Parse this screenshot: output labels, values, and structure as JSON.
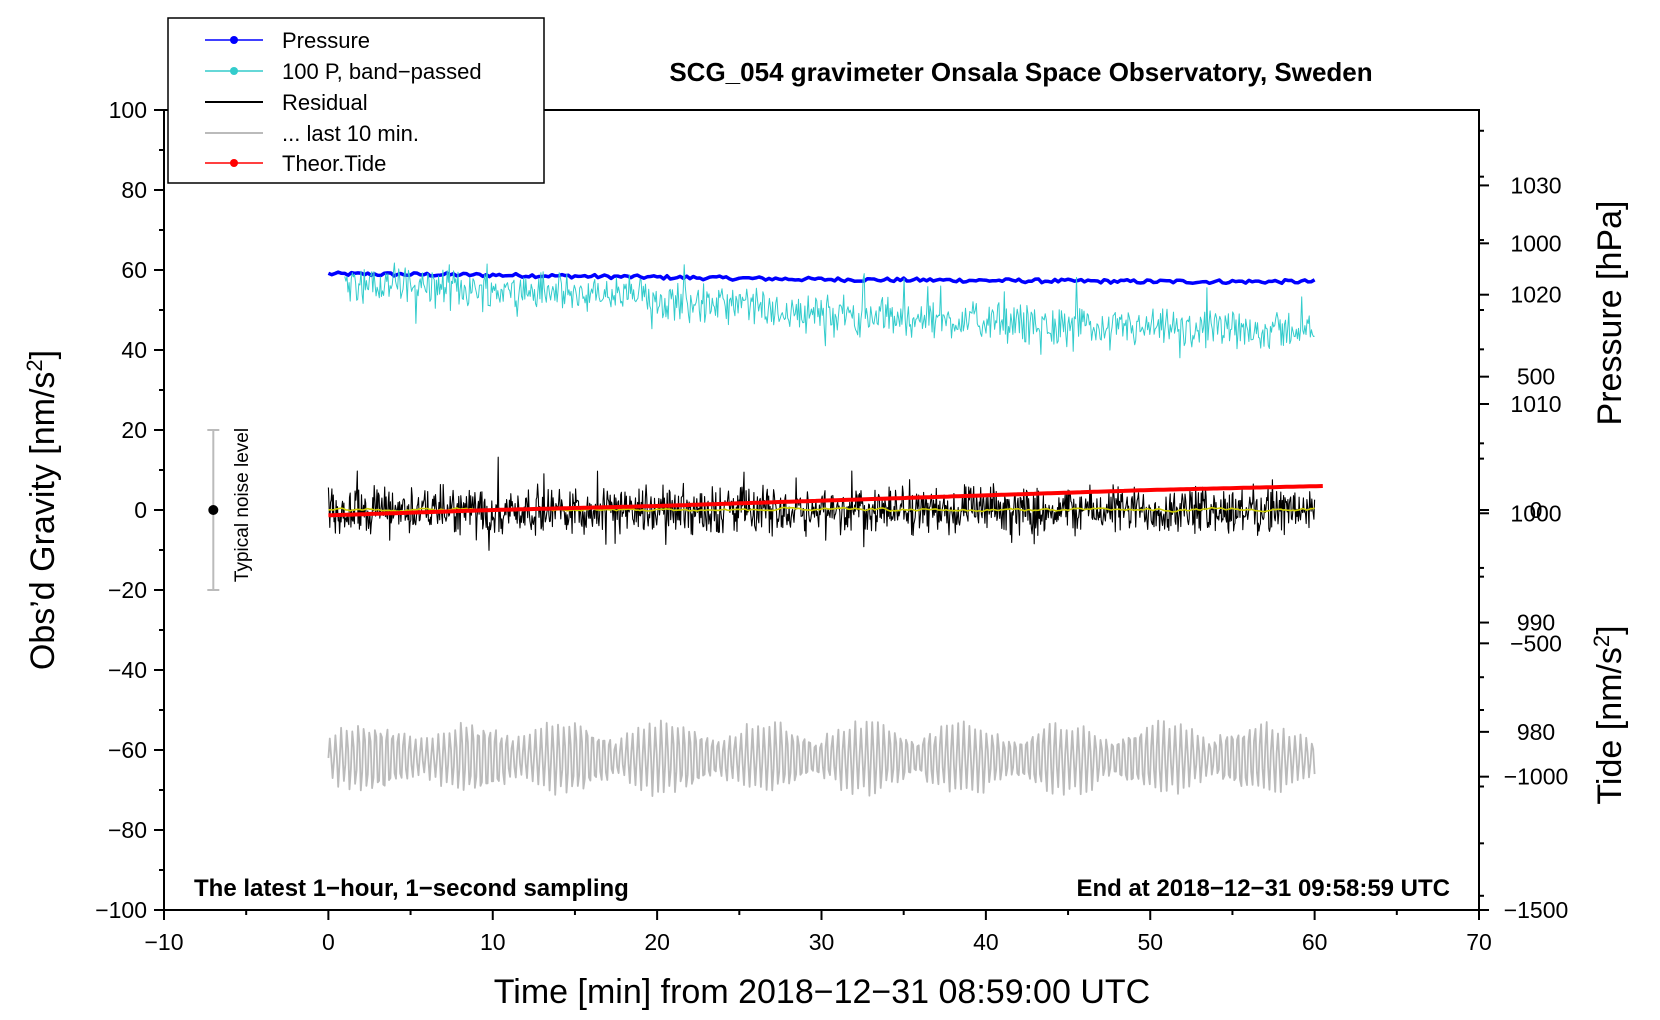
{
  "chart_data": {
    "type": "line",
    "title": "SCG_054 gravimeter Onsala Space Observatory, Sweden",
    "xlabel": "Time [min] from 2018−12−31 08:59:00 UTC",
    "ylabel_left": "Obs’d Gravity [nm/s²]",
    "ylabel_left_base": "Obs’d Gravity [nm/s",
    "ylabel_right_pressure": "Pressure [hPa]",
    "ylabel_right_tide": "Tide [nm/s²]",
    "ylabel_right_tide_base": "Tide [nm/s",
    "ylabel_sup": "2",
    "ylabel_close": "]",
    "xlim": [
      -10,
      70
    ],
    "ylim": [
      -100,
      100
    ],
    "pressure_lim": [
      963.7,
      1036.9
    ],
    "tide_lim": [
      -1500,
      1500
    ],
    "x_ticks": [
      -10,
      0,
      10,
      20,
      30,
      40,
      50,
      60,
      70
    ],
    "x_tick_labels": [
      "−10",
      "0",
      "10",
      "20",
      "30",
      "40",
      "50",
      "60",
      "70"
    ],
    "y_ticks": [
      -100,
      -80,
      -60,
      -40,
      -20,
      0,
      20,
      40,
      60,
      80,
      100
    ],
    "y_tick_labels": [
      "−100",
      "−80",
      "−60",
      "−40",
      "−20",
      "0",
      "20",
      "40",
      "60",
      "80",
      "100"
    ],
    "pressure_ticks": [
      980,
      990,
      1000,
      1010,
      1020,
      1030
    ],
    "pressure_tick_labels": [
      "980",
      "990",
      "1000",
      "1010",
      "1020",
      "1030"
    ],
    "tide_ticks": [
      -1500,
      -1000,
      -500,
      0,
      500,
      1000
    ],
    "tide_tick_labels": [
      "−1500",
      "−1000",
      "−500",
      "0",
      "500",
      "1000"
    ],
    "legend": {
      "placement": "top-left",
      "entries": [
        {
          "label": "Pressure",
          "color": "#0000ff",
          "marker": true
        },
        {
          "label": "100 P, band−passed",
          "color": "#33cccc",
          "marker": true
        },
        {
          "label": "Residual",
          "color": "#000000",
          "marker": false
        },
        {
          "label": "... last 10 min.",
          "color": "#bbbbbb",
          "marker": false
        },
        {
          "label": "Theor.Tide",
          "color": "#ff0000",
          "marker": true
        }
      ]
    },
    "series": [
      {
        "name": "Pressure",
        "axis": "pressure",
        "color": "#0000ff",
        "x": [
          0,
          10,
          20,
          30,
          40,
          50,
          60
        ],
        "y": [
          1021.9,
          1021.8,
          1021.6,
          1021.4,
          1021.3,
          1021.2,
          1021.2
        ]
      },
      {
        "name": "100 P, band−passed",
        "axis": "left",
        "color": "#33cccc",
        "x": [
          1,
          10,
          20,
          30,
          40,
          50,
          60
        ],
        "y": [
          57,
          55,
          53,
          49,
          47,
          45,
          45
        ],
        "amplitude": 6
      },
      {
        "name": "Residual",
        "axis": "left",
        "color": "#000000",
        "x": [
          0,
          60
        ],
        "y": [
          0,
          0
        ],
        "amplitude": 7
      },
      {
        "name": "Residual (smoothed)",
        "axis": "left",
        "color": "#cccc00",
        "x": [
          0,
          60
        ],
        "y": [
          0,
          0
        ]
      },
      {
        "name": "... last 10 min.",
        "axis": "left",
        "color": "#bbbbbb",
        "x": [
          0,
          60
        ],
        "y": [
          -62,
          -62
        ],
        "amplitude": 10
      },
      {
        "name": "Theor.Tide",
        "axis": "tide",
        "color": "#ff0000",
        "x": [
          0,
          10,
          20,
          30,
          40,
          50,
          60.5
        ],
        "y": [
          -20,
          0,
          15,
          35,
          55,
          75,
          90
        ]
      }
    ],
    "noise_indicator": {
      "label": "Typical noise level",
      "x": -7,
      "center": 0,
      "half_range": 20
    },
    "annotation_left": "The latest 1−hour, 1−second sampling",
    "annotation_right": "End at 2018−12−31 09:58:59 UTC"
  }
}
